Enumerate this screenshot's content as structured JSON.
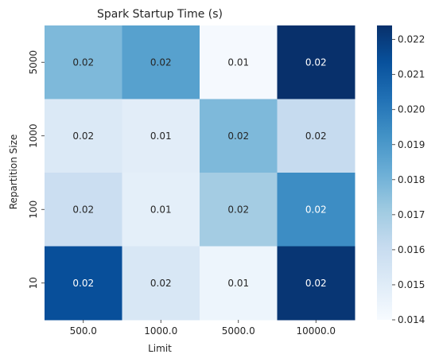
{
  "chart_data": {
    "type": "heatmap",
    "title": "Spark Startup Time (s)",
    "xlabel": "Limit",
    "ylabel": "Repartition Size",
    "x_categories": [
      "500.0",
      "1000.0",
      "5000.0",
      "10000.0"
    ],
    "y_categories": [
      "5000",
      "1000",
      "100",
      "10"
    ],
    "values": [
      [
        0.0178,
        0.0187,
        0.0141,
        0.0224
      ],
      [
        0.0152,
        0.0149,
        0.0178,
        0.0161
      ],
      [
        0.0159,
        0.0148,
        0.017,
        0.0194
      ],
      [
        0.0214,
        0.0153,
        0.0144,
        0.0222
      ]
    ],
    "cell_labels": [
      [
        "0.02",
        "0.02",
        "0.01",
        "0.02"
      ],
      [
        "0.02",
        "0.01",
        "0.02",
        "0.02"
      ],
      [
        "0.02",
        "0.01",
        "0.02",
        "0.02"
      ],
      [
        "0.02",
        "0.02",
        "0.01",
        "0.02"
      ]
    ],
    "colorbar": {
      "range": [
        0.014,
        0.0224
      ],
      "ticks": [
        "0.014",
        "0.015",
        "0.016",
        "0.017",
        "0.018",
        "0.019",
        "0.020",
        "0.021",
        "0.022"
      ],
      "colormap": [
        "#f7fbff",
        "#deebf7",
        "#c6dbef",
        "#9ecae1",
        "#6baed6",
        "#4292c6",
        "#2171b5",
        "#08519c",
        "#08306b"
      ]
    }
  }
}
